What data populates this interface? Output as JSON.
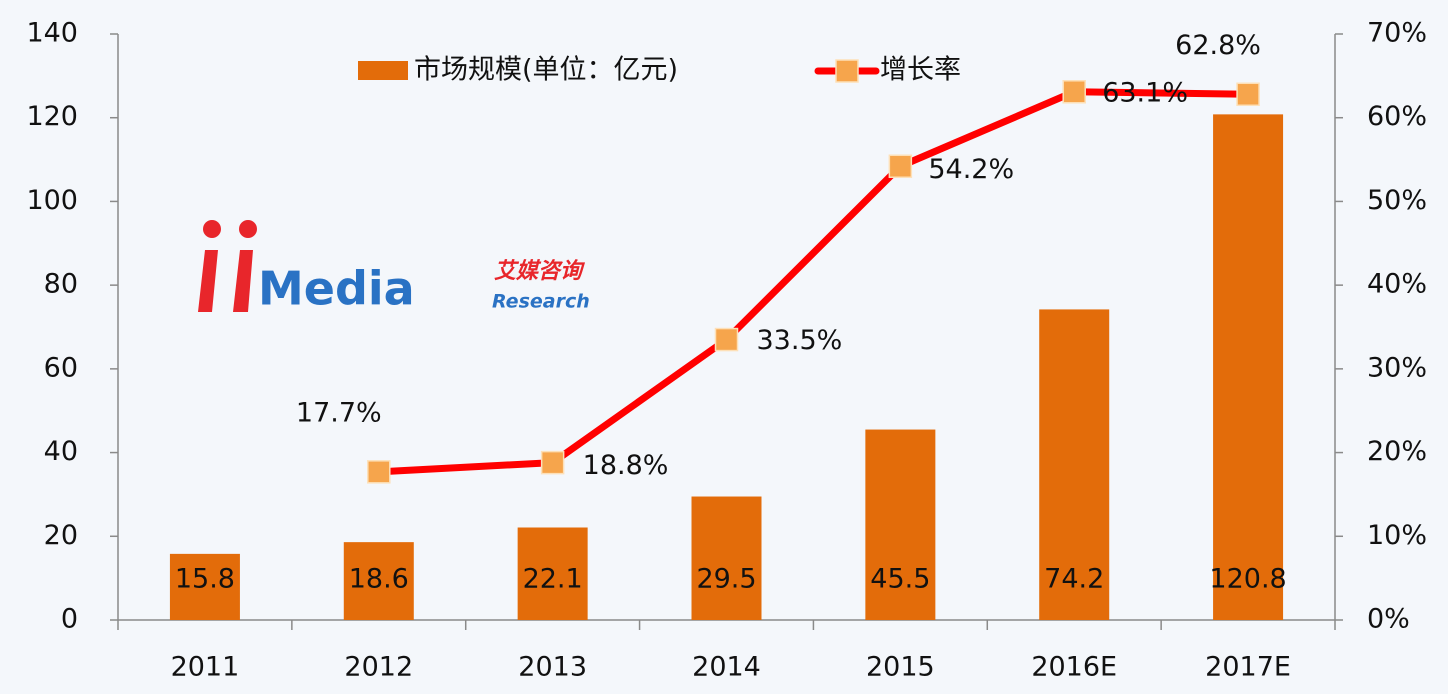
{
  "chart_data": {
    "type": "bar_line",
    "categories": [
      "2011",
      "2012",
      "2013",
      "2014",
      "2015",
      "2016E",
      "2017E"
    ],
    "series": [
      {
        "name": "市场规模(单位：亿元)",
        "color": "#e36c0a",
        "type": "bar",
        "values": [
          15.8,
          18.6,
          22.1,
          29.5,
          45.5,
          74.2,
          120.8
        ]
      },
      {
        "name": "增长率",
        "color": "#ff0000",
        "marker_color": "#f6a54c",
        "type": "line",
        "axis": "y2",
        "values": [
          null,
          17.7,
          18.8,
          33.5,
          54.2,
          63.1,
          62.8
        ],
        "value_labels": [
          null,
          "17.7%",
          "18.8%",
          "33.5%",
          "54.2%",
          "63.1%",
          "62.8%"
        ]
      }
    ],
    "ylim": [
      0,
      140
    ],
    "yticks": [
      0,
      20,
      40,
      60,
      80,
      100,
      120,
      140
    ],
    "y2lim": [
      0,
      70
    ],
    "y2ticks": [
      {
        "value": 0,
        "label": "0%"
      },
      {
        "value": 10,
        "label": "10%"
      },
      {
        "value": 20,
        "label": "20%"
      },
      {
        "value": 30,
        "label": "30%"
      },
      {
        "value": 40,
        "label": "40%"
      },
      {
        "value": 50,
        "label": "50%"
      },
      {
        "value": 60,
        "label": "60%"
      },
      {
        "value": 70,
        "label": "70%"
      }
    ],
    "legend": "top",
    "logo": {
      "brand": "Media",
      "cn": "艾媒咨询",
      "en": "Research"
    }
  }
}
